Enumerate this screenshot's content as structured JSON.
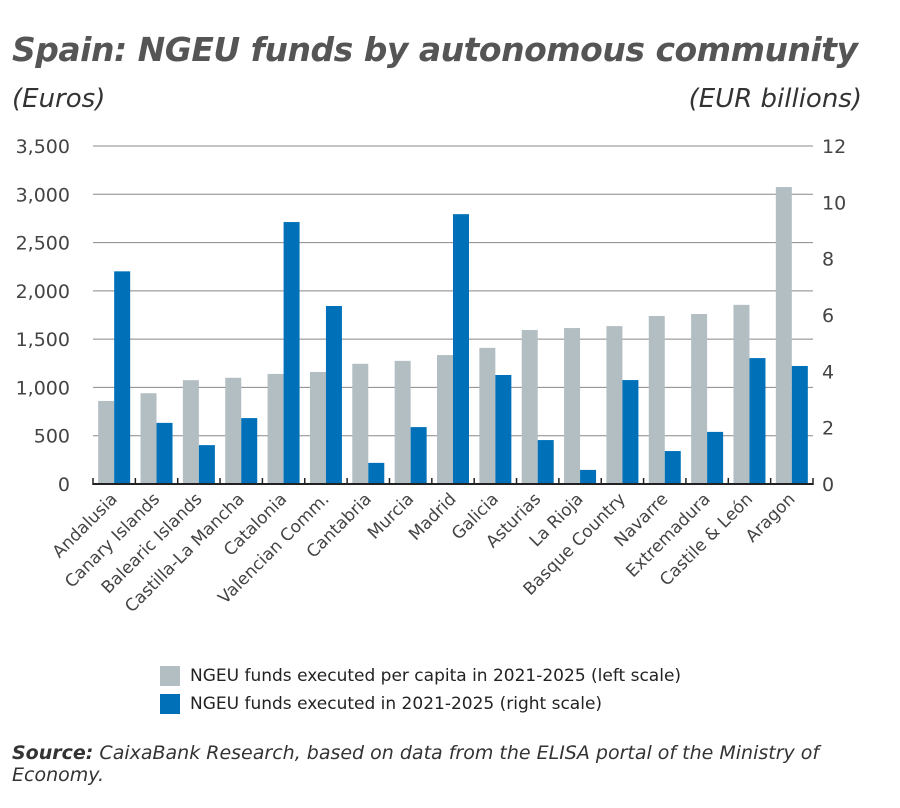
{
  "chart_data": {
    "type": "bar",
    "title": "Spain: NGEU funds by autonomous community",
    "ylabel": "(Euros)",
    "y2label": "(EUR billions)",
    "ylim": [
      0,
      3500
    ],
    "y2lim": [
      0,
      12
    ],
    "yticks": [
      "0",
      "500",
      "1,000",
      "1,500",
      "2,000",
      "2,500",
      "3,000",
      "3,500"
    ],
    "y2ticks": [
      "0",
      "2",
      "4",
      "6",
      "8",
      "10",
      "12"
    ],
    "grid": true,
    "legend_position": "bottom",
    "categories": [
      "Andalusia",
      "Canary Islands",
      "Balearic Islands",
      "Castilla-La Mancha",
      "Catalonia",
      "Valencian Comm.",
      "Cantabria",
      "Murcia",
      "Madrid",
      "Galicia",
      "Asturias",
      "La Rioja",
      "Basque Country",
      "Navarre",
      "Extremadura",
      "Castile & León",
      "Aragon"
    ],
    "series": [
      {
        "name": "NGEU funds executed per capita in 2021-2025 (left scale)",
        "axis": "left",
        "color": "#b3bec3",
        "values": [
          860,
          940,
          1075,
          1100,
          1140,
          1160,
          1245,
          1275,
          1335,
          1410,
          1595,
          1615,
          1635,
          1740,
          1760,
          1855,
          3075
        ]
      },
      {
        "name": "NGEU funds executed in 2021-2025 (right scale)",
        "axis": "right",
        "color": "#0071b9",
        "values": [
          7.55,
          2.17,
          1.38,
          2.34,
          9.3,
          6.32,
          0.75,
          2.02,
          9.58,
          3.87,
          1.56,
          0.5,
          3.69,
          1.17,
          1.85,
          4.47,
          4.19
        ]
      }
    ]
  },
  "source_label": "Source:",
  "source_text": " CaixaBank Research, based on data from the ELISA portal of the Ministry of Economy."
}
